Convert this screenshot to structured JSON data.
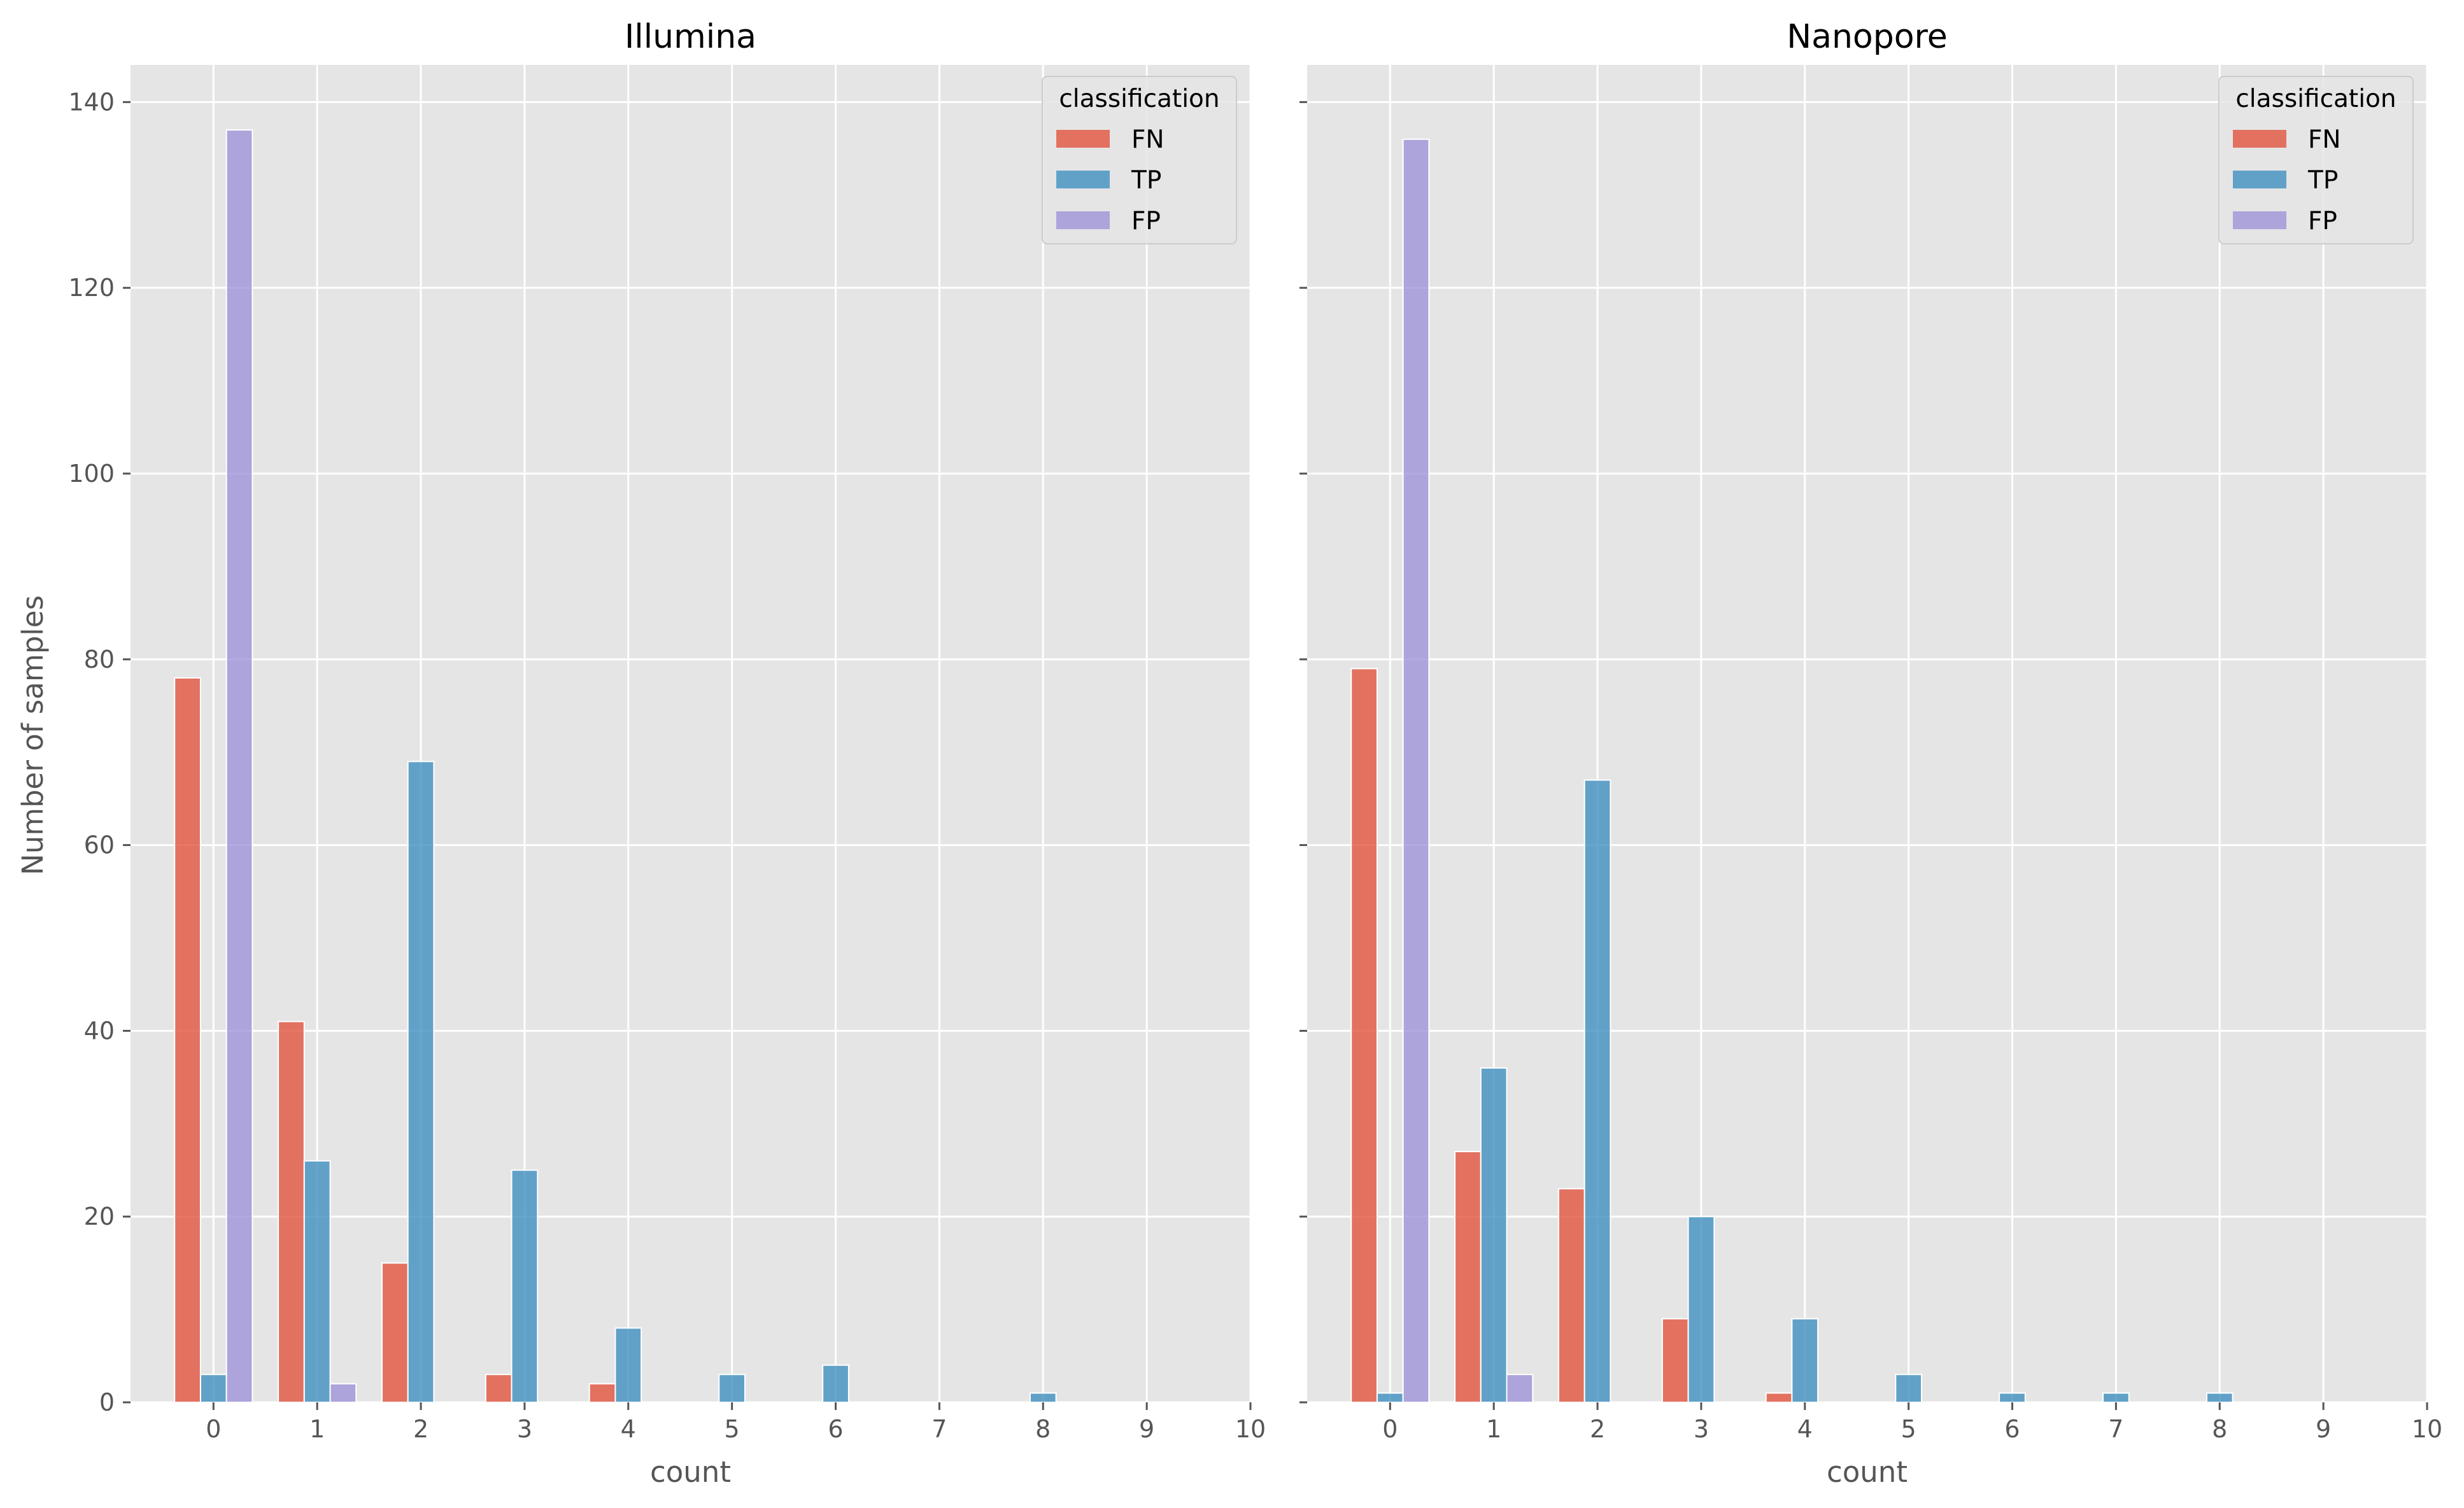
{
  "colors": {
    "FN": "#E24A33",
    "TP": "#348ABD",
    "FP": "#988ED5",
    "panel": "#E5E5E5",
    "grid": "#FFFFFF"
  },
  "ylabel": "Number of samples",
  "chart_data": [
    {
      "type": "bar",
      "title": "Illumina",
      "xlabel": "count",
      "ylabel": "Number of samples",
      "x_ticks": [
        0,
        1,
        2,
        3,
        4,
        5,
        6,
        7,
        8,
        9,
        10
      ],
      "y_ticks": [
        0,
        20,
        40,
        60,
        80,
        100,
        120,
        140
      ],
      "xlim": [
        -0.8,
        10
      ],
      "ylim": [
        0,
        144
      ],
      "grid": true,
      "legend": {
        "title": "classification",
        "placement": "top-right",
        "entries": [
          "FN",
          "TP",
          "FP"
        ]
      },
      "categories": [
        0,
        1,
        2,
        3,
        4,
        5,
        6,
        7,
        8,
        9
      ],
      "series": [
        {
          "name": "FN",
          "values": [
            78,
            41,
            15,
            3,
            2,
            0,
            0,
            0,
            0,
            0
          ]
        },
        {
          "name": "TP",
          "values": [
            3,
            26,
            69,
            25,
            8,
            3,
            4,
            0,
            1,
            0
          ]
        },
        {
          "name": "FP",
          "values": [
            137,
            2,
            0,
            0,
            0,
            0,
            0,
            0,
            0,
            0
          ]
        }
      ]
    },
    {
      "type": "bar",
      "title": "Nanopore",
      "xlabel": "count",
      "x_ticks": [
        0,
        1,
        2,
        3,
        4,
        5,
        6,
        7,
        8,
        9,
        10
      ],
      "y_ticks": [
        0,
        20,
        40,
        60,
        80,
        100,
        120,
        140
      ],
      "xlim": [
        -0.8,
        10
      ],
      "ylim": [
        0,
        144
      ],
      "grid": true,
      "legend": {
        "title": "classification",
        "placement": "top-right",
        "entries": [
          "FN",
          "TP",
          "FP"
        ]
      },
      "categories": [
        0,
        1,
        2,
        3,
        4,
        5,
        6,
        7,
        8,
        9
      ],
      "series": [
        {
          "name": "FN",
          "values": [
            79,
            27,
            23,
            9,
            1,
            0,
            0,
            0,
            0,
            0
          ]
        },
        {
          "name": "TP",
          "values": [
            1,
            36,
            67,
            20,
            9,
            3,
            1,
            1,
            1,
            0
          ]
        },
        {
          "name": "FP",
          "values": [
            136,
            3,
            0,
            0,
            0,
            0,
            0,
            0,
            0,
            0
          ]
        }
      ]
    }
  ]
}
